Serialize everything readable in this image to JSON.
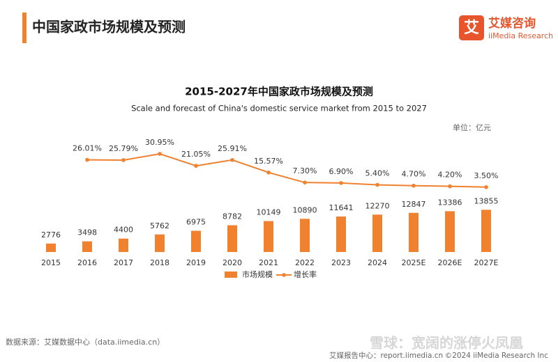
{
  "header": {
    "title": "中国家政市场规模及预测",
    "logo_mark": "艾",
    "brand": "艾媒咨询",
    "brand_en": "iiMedia Research"
  },
  "chart_data": {
    "type": "bar",
    "title": "2015-2027年中国家政市场规模及预测",
    "subtitle": "Scale and forecast of China's domestic service market from 2015 to 2027",
    "unit": "单位：亿元",
    "categories": [
      "2015",
      "2016",
      "2017",
      "2018",
      "2019",
      "2020",
      "2021",
      "2022",
      "2023",
      "2024",
      "2025E",
      "2026E",
      "2027E"
    ],
    "series": [
      {
        "name": "市场规模",
        "type": "bar",
        "color": "#f0812f",
        "values": [
          2776,
          3498,
          4400,
          5762,
          6975,
          8782,
          10149,
          10890,
          11641,
          12270,
          12847,
          13386,
          13855
        ]
      },
      {
        "name": "增长率",
        "type": "line",
        "axis": "y2",
        "color": "#f0812f",
        "values": [
          null,
          26.01,
          25.79,
          30.95,
          21.05,
          25.91,
          15.57,
          7.3,
          6.9,
          5.4,
          4.7,
          4.2,
          3.5
        ],
        "value_labels": [
          null,
          "26.01%",
          "25.79%",
          "30.95%",
          "21.05%",
          "25.91%",
          "15.57%",
          "7.30%",
          "6.90%",
          "5.40%",
          "4.70%",
          "4.20%",
          "3.50%"
        ]
      }
    ],
    "ylim": [
      0,
      37000
    ],
    "y2lim": [
      -50,
      43
    ],
    "legend": "bottom"
  },
  "footer": {
    "source": "数据来源：艾媒数据中心（data.iimedia.cn）",
    "report": "艾媒报告中心：report.iimedia.cn",
    "copyright": "©2024  iiMedia Research Inc",
    "watermark": "雪球：宽阔的涨停火凤凰"
  }
}
